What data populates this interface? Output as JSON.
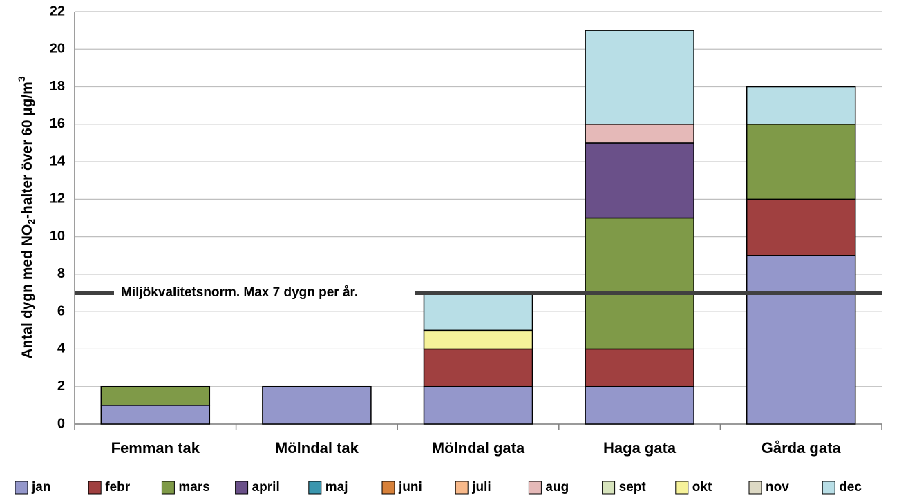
{
  "chart_data": {
    "type": "stacked-bar",
    "y_label": [
      "Antal dygn med NO",
      "2",
      "-halter över 60 µg/m",
      "3"
    ],
    "categories": [
      "Femman tak",
      "Mölndal tak",
      "Mölndal gata",
      "Haga gata",
      "Gårda gata"
    ],
    "series": [
      {
        "name": "jan",
        "color": "#9497cb",
        "values": [
          1,
          2,
          2,
          2,
          9
        ]
      },
      {
        "name": "febr",
        "color": "#a04040",
        "values": [
          0,
          0,
          2,
          2,
          3
        ]
      },
      {
        "name": "mars",
        "color": "#7f9a48",
        "values": [
          1,
          0,
          0,
          7,
          4
        ]
      },
      {
        "name": "april",
        "color": "#6a5089",
        "values": [
          0,
          0,
          0,
          4,
          0
        ]
      },
      {
        "name": "maj",
        "color": "#3a96ae",
        "values": [
          0,
          0,
          0,
          0,
          0
        ]
      },
      {
        "name": "juni",
        "color": "#d7813a",
        "values": [
          0,
          0,
          0,
          0,
          0
        ]
      },
      {
        "name": "juli",
        "color": "#f8b98a",
        "values": [
          0,
          0,
          0,
          0,
          0
        ]
      },
      {
        "name": "aug",
        "color": "#e5b9b8",
        "values": [
          0,
          0,
          0,
          1,
          0
        ]
      },
      {
        "name": "sept",
        "color": "#d7e4bd",
        "values": [
          0,
          0,
          0,
          0,
          0
        ]
      },
      {
        "name": "okt",
        "color": "#f6f29a",
        "values": [
          0,
          0,
          1,
          0,
          0
        ]
      },
      {
        "name": "nov",
        "color": "#ddd9c4",
        "values": [
          0,
          0,
          0,
          0,
          0
        ]
      },
      {
        "name": "dec",
        "color": "#b8dee6",
        "values": [
          0,
          0,
          2,
          5,
          2
        ]
      }
    ],
    "ylim": [
      0,
      22
    ],
    "yticks": [
      0,
      2,
      4,
      6,
      8,
      10,
      12,
      14,
      16,
      18,
      20,
      22
    ],
    "grid": true,
    "reference_line": {
      "value": 7,
      "label": "Miljökvalitetsnorm. Max 7 dygn per år.",
      "color": "#404040"
    },
    "legend": "bottom"
  }
}
